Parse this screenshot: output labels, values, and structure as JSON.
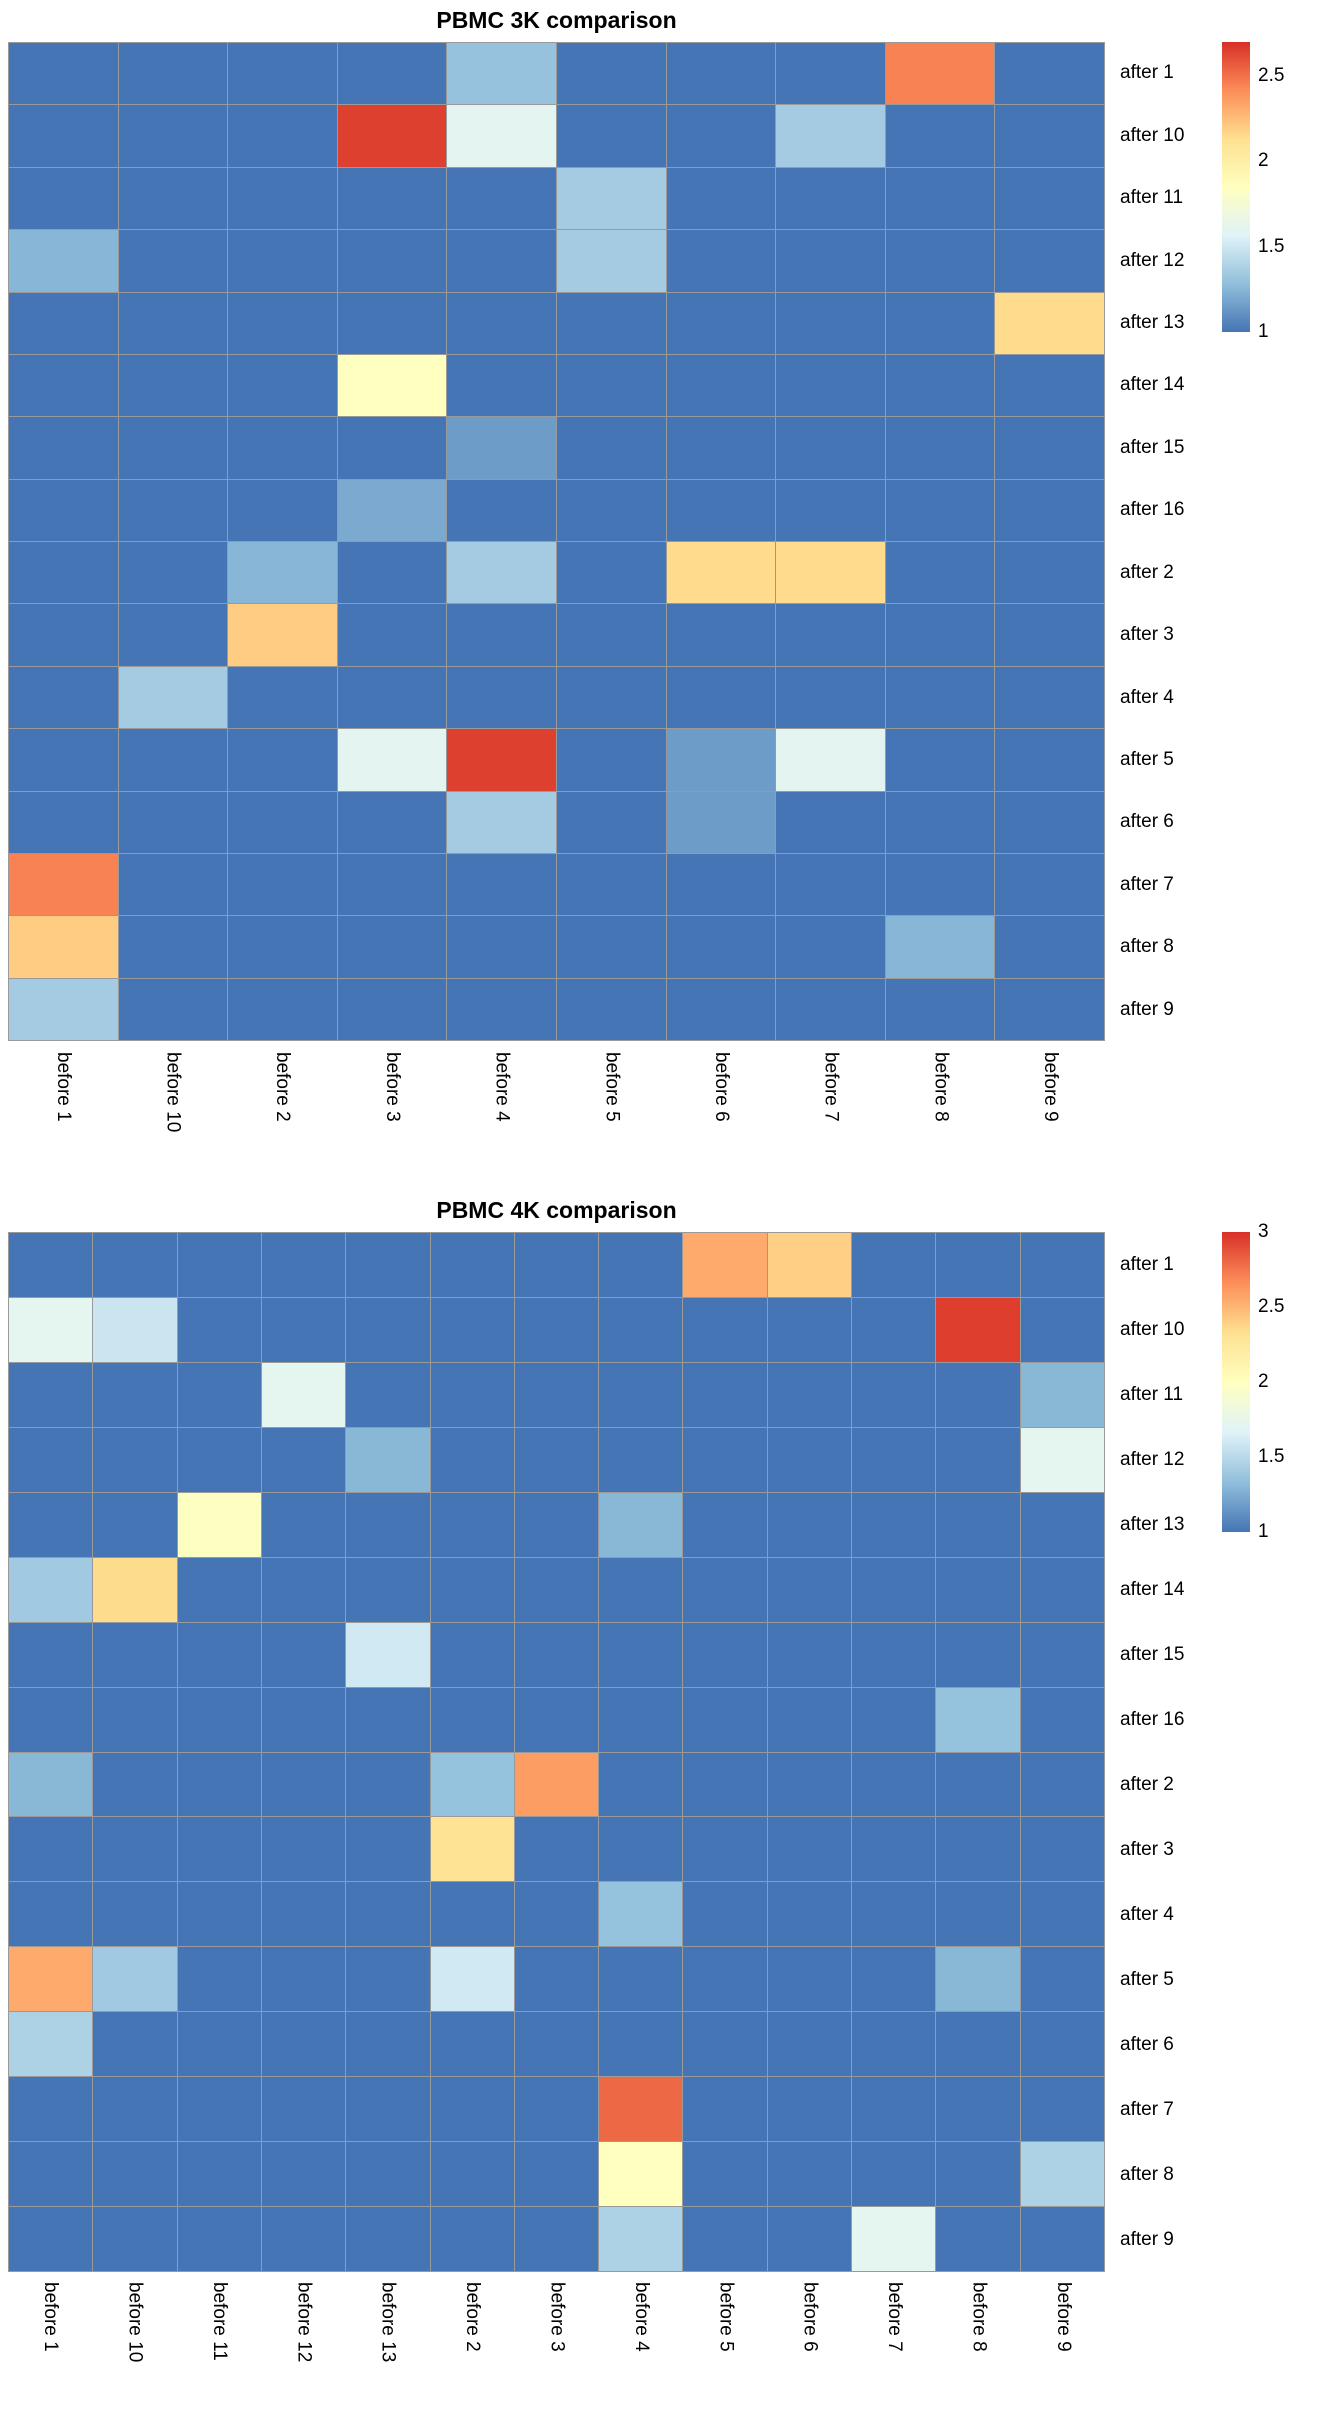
{
  "page": {
    "background": "#ffffff",
    "grid_line_color": "#9a9a9a"
  },
  "chart_data": [
    {
      "type": "heatmap",
      "title": "PBMC 3K comparison",
      "rows": [
        "after 1",
        "after 10",
        "after 11",
        "after 12",
        "after 13",
        "after 14",
        "after 15",
        "after 16",
        "after 2",
        "after 3",
        "after 4",
        "after 5",
        "after 6",
        "after 7",
        "after 8",
        "after 9"
      ],
      "columns": [
        "before 1",
        "before 10",
        "before 2",
        "before 3",
        "before 4",
        "before 5",
        "before 6",
        "before 7",
        "before 8",
        "before 9"
      ],
      "values": [
        [
          1,
          1,
          1,
          1,
          1.3,
          1,
          1,
          1,
          2.45,
          1
        ],
        [
          1,
          1,
          1,
          2.65,
          1.6,
          1,
          1,
          1.35,
          1,
          1
        ],
        [
          1,
          1,
          1,
          1,
          1,
          1.35,
          1,
          1,
          1,
          1
        ],
        [
          1.25,
          1,
          1,
          1,
          1,
          1.35,
          1,
          1,
          1,
          1
        ],
        [
          1,
          1,
          1,
          1,
          1,
          1,
          1,
          1,
          1,
          2.15
        ],
        [
          1,
          1,
          1,
          1.85,
          1,
          1,
          1,
          1,
          1,
          1
        ],
        [
          1,
          1,
          1,
          1,
          1.15,
          1,
          1,
          1,
          1,
          1
        ],
        [
          1,
          1,
          1,
          1.2,
          1,
          1,
          1,
          1,
          1,
          1
        ],
        [
          1,
          1,
          1.25,
          1,
          1.35,
          1,
          2.15,
          2.15,
          1,
          1
        ],
        [
          1,
          1,
          2.2,
          1,
          1,
          1,
          1,
          1,
          1,
          1
        ],
        [
          1,
          1.35,
          1,
          1,
          1,
          1,
          1,
          1,
          1,
          1
        ],
        [
          1,
          1,
          1,
          1.6,
          2.65,
          1,
          1.15,
          1.6,
          1,
          1
        ],
        [
          1,
          1,
          1,
          1,
          1.35,
          1,
          1.15,
          1,
          1,
          1
        ],
        [
          2.45,
          1,
          1,
          1,
          1,
          1,
          1,
          1,
          1,
          1
        ],
        [
          2.2,
          1,
          1,
          1,
          1,
          1,
          1,
          1,
          1.25,
          1
        ],
        [
          1.35,
          1,
          1,
          1,
          1,
          1,
          1,
          1,
          1,
          1
        ]
      ],
      "value_range": [
        1,
        2.7
      ],
      "colorbar_ticks": [
        2.5,
        2,
        1.5,
        1
      ],
      "colormap_stops": [
        "#4575b4",
        "#91bfdb",
        "#e0f3f8",
        "#ffffbf",
        "#fee090",
        "#fc8d59",
        "#d73027"
      ],
      "legend_position": "right"
    },
    {
      "type": "heatmap",
      "title": "PBMC 4K comparison",
      "rows": [
        "after 1",
        "after 10",
        "after 11",
        "after 12",
        "after 13",
        "after 14",
        "after 15",
        "after 16",
        "after 2",
        "after 3",
        "after 4",
        "after 5",
        "after 6",
        "after 7",
        "after 8",
        "after 9"
      ],
      "columns": [
        "before 1",
        "before 10",
        "before 11",
        "before 12",
        "before 13",
        "before 2",
        "before 3",
        "before 4",
        "before 5",
        "before 6",
        "before 7",
        "before 8",
        "before 9"
      ],
      "values": [
        [
          1,
          1,
          1,
          1,
          1,
          1,
          1,
          1,
          2.55,
          2.4,
          1,
          1,
          1
        ],
        [
          1.72,
          1.58,
          1,
          1,
          1,
          1,
          1,
          1,
          1,
          1,
          1,
          2.95,
          1
        ],
        [
          1,
          1,
          1,
          1.72,
          1,
          1,
          1,
          1,
          1,
          1,
          1,
          1,
          1.3
        ],
        [
          1,
          1,
          1,
          1,
          1.3,
          1,
          1,
          1,
          1,
          1,
          1,
          1,
          1.72
        ],
        [
          1,
          1,
          1.98,
          1,
          1,
          1,
          1,
          1.3,
          1,
          1,
          1,
          1,
          1
        ],
        [
          1.4,
          2.35,
          1,
          1,
          1,
          1,
          1,
          1,
          1,
          1,
          1,
          1,
          1
        ],
        [
          1,
          1,
          1,
          1,
          1.6,
          1,
          1,
          1,
          1,
          1,
          1,
          1,
          1
        ],
        [
          1,
          1,
          1,
          1,
          1,
          1,
          1,
          1,
          1,
          1,
          1,
          1.35,
          1
        ],
        [
          1.3,
          1,
          1,
          1,
          1,
          1.35,
          2.6,
          1,
          1,
          1,
          1,
          1,
          1
        ],
        [
          1,
          1,
          1,
          1,
          1,
          2.3,
          1,
          1,
          1,
          1,
          1,
          1,
          1
        ],
        [
          1,
          1,
          1,
          1,
          1,
          1,
          1,
          1.35,
          1,
          1,
          1,
          1,
          1
        ],
        [
          2.55,
          1.4,
          1,
          1,
          1,
          1.6,
          1,
          1,
          1,
          1,
          1,
          1.3,
          1
        ],
        [
          1.45,
          1,
          1,
          1,
          1,
          1,
          1,
          1,
          1,
          1,
          1,
          1,
          1
        ],
        [
          1,
          1,
          1,
          1,
          1,
          1,
          1,
          2.8,
          1,
          1,
          1,
          1,
          1
        ],
        [
          1,
          1,
          1,
          1,
          1,
          1,
          1,
          2,
          1,
          1,
          1,
          1,
          1.45
        ],
        [
          1,
          1,
          1,
          1,
          1,
          1,
          1,
          1.45,
          1,
          1,
          1.72,
          1,
          1
        ]
      ],
      "value_range": [
        1,
        3
      ],
      "colorbar_ticks": [
        3,
        2.5,
        2,
        1.5,
        1
      ],
      "colormap_stops": [
        "#4575b4",
        "#91bfdb",
        "#e0f3f8",
        "#ffffbf",
        "#fee090",
        "#fc8d59",
        "#d73027"
      ],
      "legend_position": "right"
    }
  ]
}
